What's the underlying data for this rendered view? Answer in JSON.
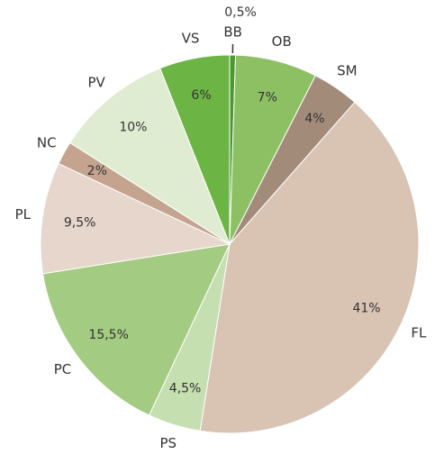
{
  "chart_data": {
    "type": "pie",
    "categories": [
      "BB",
      "OB",
      "SM",
      "FL",
      "PS",
      "PC",
      "PL",
      "NC",
      "PV",
      "VS"
    ],
    "values": [
      0.5,
      7,
      4,
      41,
      4.5,
      15.5,
      9.5,
      2,
      10,
      6
    ],
    "value_labels": [
      "0,5%",
      "7%",
      "4%",
      "41%",
      "4,5%",
      "15,5%",
      "9,5%",
      "2%",
      "10%",
      "6%"
    ],
    "colors": [
      "#4a9a2e",
      "#8cc063",
      "#a38b7a",
      "#d9c3b3",
      "#c5dfb0",
      "#a3cb82",
      "#e6d6cb",
      "#c4a38f",
      "#e0ecd2",
      "#6cb545"
    ]
  }
}
